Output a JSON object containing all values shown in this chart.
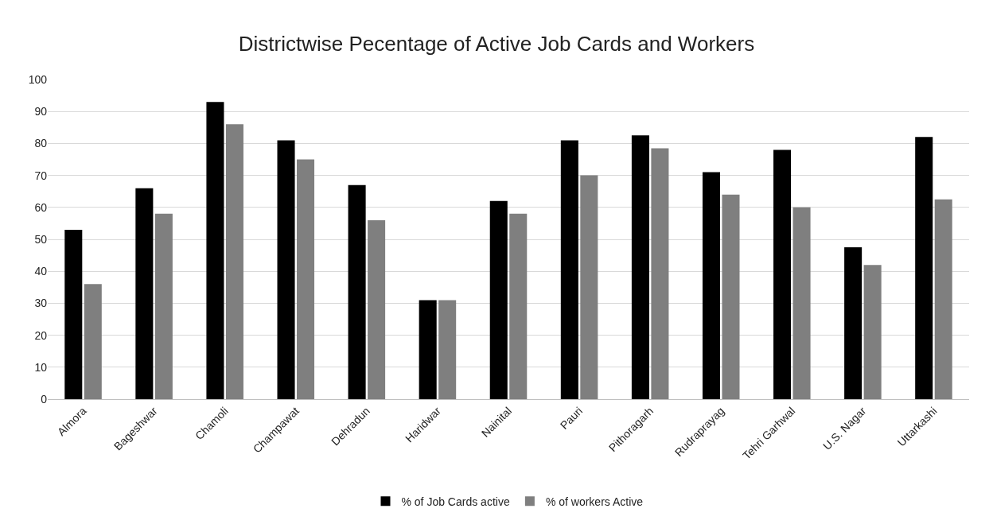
{
  "chart_data": {
    "type": "bar",
    "title": "Districtwise Pecentage of Active Job Cards and Workers",
    "categories": [
      "Almora",
      "Bageshwar",
      "Chamoli",
      "Champawat",
      "Dehradun",
      "Haridwar",
      "Nainital",
      "Pauri",
      "Pithoragarh",
      "Rudraprayag",
      "Tehri Garhwal",
      "U.S. Nagar",
      "Uttarkashi"
    ],
    "series": [
      {
        "name": "% of Job Cards active",
        "color": "#000000",
        "values": [
          53,
          66,
          93,
          81,
          67,
          31,
          62,
          81,
          82.5,
          71,
          78,
          47.5,
          82
        ]
      },
      {
        "name": "% of workers Active",
        "color": "#7f7f7f",
        "values": [
          36,
          58,
          86,
          75,
          56,
          31,
          58,
          70,
          78.5,
          64,
          60,
          42,
          62.5
        ]
      }
    ],
    "ylim": [
      0,
      100
    ],
    "yticks": [
      0,
      10,
      20,
      30,
      40,
      50,
      60,
      70,
      80,
      90,
      100
    ],
    "grid": "y",
    "legend": "bottom"
  }
}
